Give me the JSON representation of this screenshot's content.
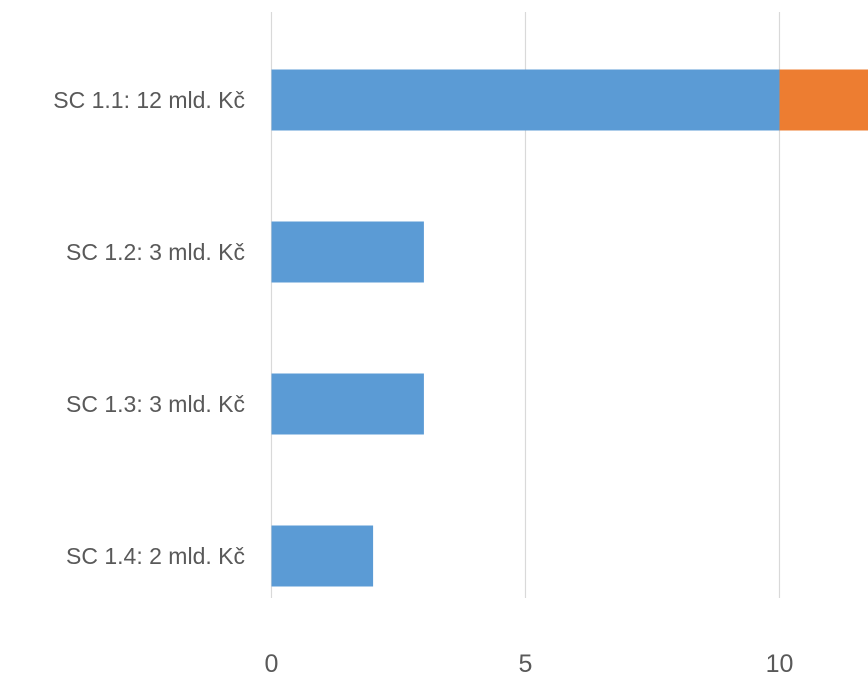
{
  "chart_data": {
    "type": "bar",
    "orientation": "horizontal",
    "stacked": true,
    "title": "",
    "xlabel": "",
    "ylabel": "",
    "categories": [
      "SC 1.1: 12 mld. Kč",
      "SC 1.2: 3 mld. Kč",
      "SC 1.3: 3 mld. Kč",
      "SC 1.4: 2 mld. Kč"
    ],
    "series": [
      {
        "values": [
          10,
          3,
          3,
          2
        ],
        "color": "#5b9bd5"
      },
      {
        "values": [
          2,
          0,
          0,
          0
        ],
        "color": "#ed7d31"
      }
    ],
    "xlim": [
      0,
      12
    ],
    "xticks": [
      0,
      5,
      10
    ],
    "tick_labels": [
      "0",
      "5",
      "10"
    ],
    "grid": true,
    "legend": "none"
  }
}
